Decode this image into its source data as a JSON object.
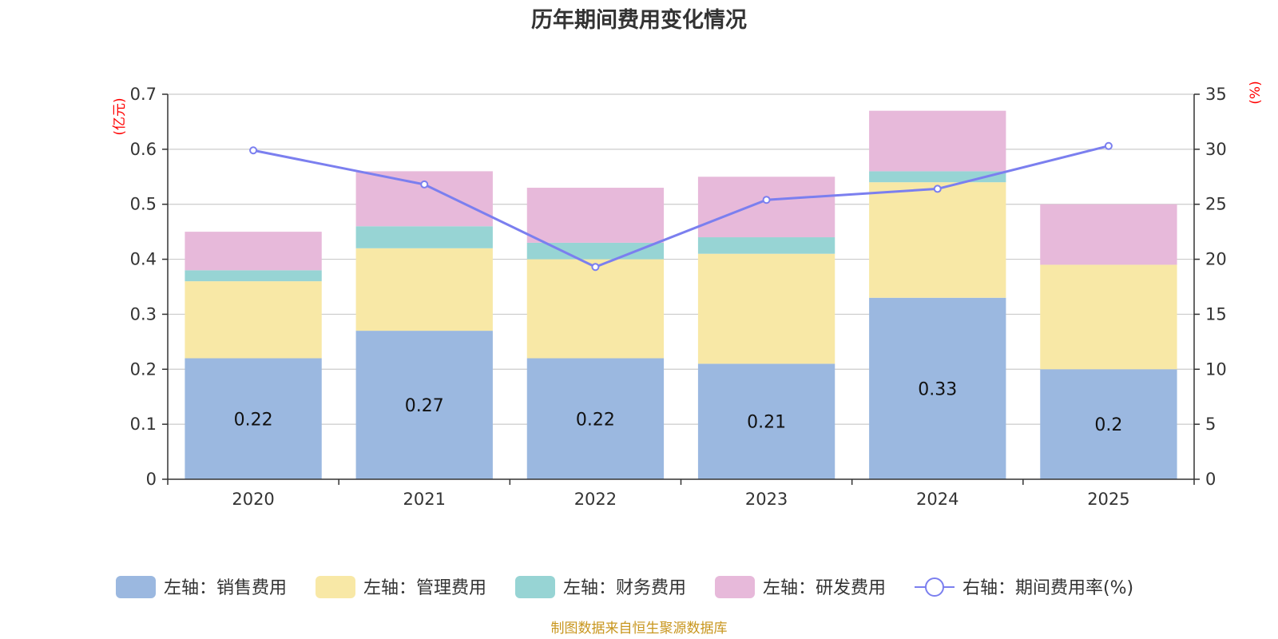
{
  "chart_data": {
    "type": "bar",
    "stacked": true,
    "title": "历年期间费用变化情况",
    "categories": [
      "2020",
      "2021",
      "2022",
      "2023",
      "2024",
      "2025"
    ],
    "y_left": {
      "unit": "(亿元)",
      "ylim": [
        0,
        0.7
      ],
      "ticks": [
        "0",
        "0.1",
        "0.2",
        "0.3",
        "0.4",
        "0.5",
        "0.6",
        "0.7"
      ]
    },
    "y_right": {
      "unit": "(%)",
      "ylim": [
        0,
        35
      ],
      "ticks": [
        "0",
        "5",
        "10",
        "15",
        "20",
        "25",
        "30",
        "35"
      ]
    },
    "grid": true,
    "series": [
      {
        "name": "左轴：销售费用",
        "axis": "left",
        "color": "#9bb8e0",
        "values": [
          0.22,
          0.27,
          0.22,
          0.21,
          0.33,
          0.2
        ],
        "labels": [
          "0.22",
          "0.27",
          "0.22",
          "0.21",
          "0.33",
          "0.2"
        ]
      },
      {
        "name": "左轴：管理费用",
        "axis": "left",
        "color": "#f8e8a6",
        "values": [
          0.14,
          0.15,
          0.18,
          0.2,
          0.21,
          0.19
        ]
      },
      {
        "name": "左轴：财务费用",
        "axis": "left",
        "color": "#97d4d4",
        "values": [
          0.02,
          0.04,
          0.03,
          0.03,
          0.02,
          0.0
        ]
      },
      {
        "name": "左轴：研发费用",
        "axis": "left",
        "color": "#e7b9da",
        "values": [
          0.07,
          0.1,
          0.1,
          0.11,
          0.11,
          0.11
        ]
      },
      {
        "name": "右轴：期间费用率(%)",
        "axis": "right",
        "type": "line",
        "color": "#7b7fef",
        "values": [
          29.9,
          26.8,
          19.3,
          25.4,
          26.4,
          30.3
        ]
      }
    ],
    "legend_position": "bottom",
    "source": "制图数据来自恒生聚源数据库"
  }
}
